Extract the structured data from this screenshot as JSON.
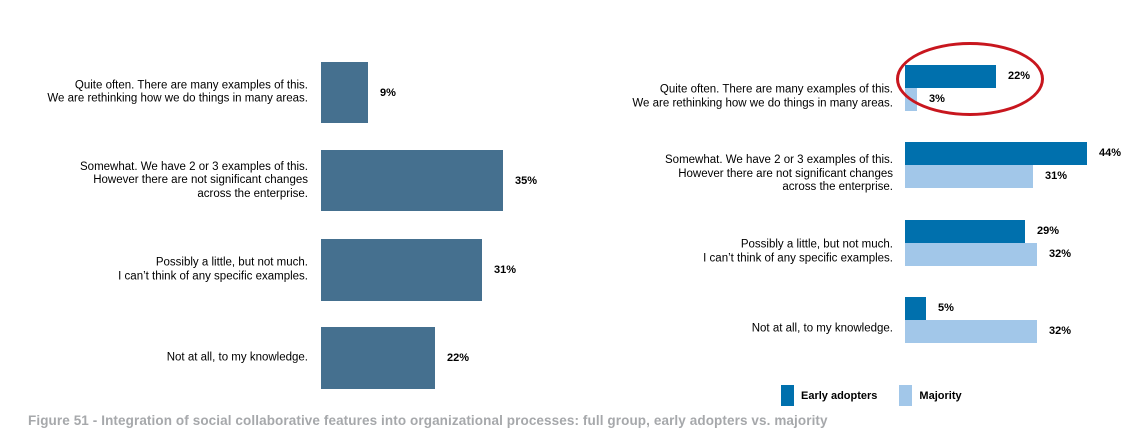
{
  "caption": "Figure 51 - Integration of social collaborative features into organizational processes: full group, early adopters vs. majority",
  "legend": {
    "items": [
      {
        "label": "Early adopters",
        "color": "#0070AD"
      },
      {
        "label": "Majority",
        "color": "#A2C7E9"
      }
    ]
  },
  "annotation": {
    "type": "ellipse-highlight",
    "color": "#C8161E",
    "highlights": "Quite often: Early adopters 22% vs Majority 3%"
  },
  "chart_data": [
    {
      "type": "bar",
      "name": "full-group",
      "orientation": "horizontal",
      "unit": "percent",
      "bar_color": "#45708F",
      "axis": "hidden",
      "categories": [
        "Quite often. There are many examples of this.\nWe are rethinking how we do things in many areas.",
        "Somewhat. We have 2 or 3 examples of this.\nHowever there are not significant changes\nacross the enterprise.",
        "Possibly a little, but not much.\nI can’t think of any specific examples.",
        "Not at all, to my knowledge."
      ],
      "values": [
        9,
        35,
        31,
        22
      ],
      "labels": [
        "9%",
        "35%",
        "31%",
        "22%"
      ]
    },
    {
      "type": "bar",
      "name": "early-adopters-vs-majority",
      "orientation": "horizontal",
      "unit": "percent",
      "axis": "hidden",
      "categories": [
        "Quite often. There are many examples of this.\nWe are rethinking how we do things in many areas.",
        "Somewhat. We have 2 or 3 examples of this.\nHowever there are not significant changes\nacross the enterprise.",
        "Possibly a little, but not much.\nI can’t think of any specific examples.",
        "Not at all, to my knowledge."
      ],
      "series": [
        {
          "name": "Early adopters",
          "color": "#0070AD",
          "values": [
            22,
            44,
            29,
            5
          ],
          "labels": [
            "22%",
            "44%",
            "29%",
            "5%"
          ]
        },
        {
          "name": "Majority",
          "color": "#A2C7E9",
          "values": [
            3,
            31,
            32,
            32
          ],
          "labels": [
            "3%",
            "31%",
            "32%",
            "32%"
          ]
        }
      ]
    }
  ]
}
